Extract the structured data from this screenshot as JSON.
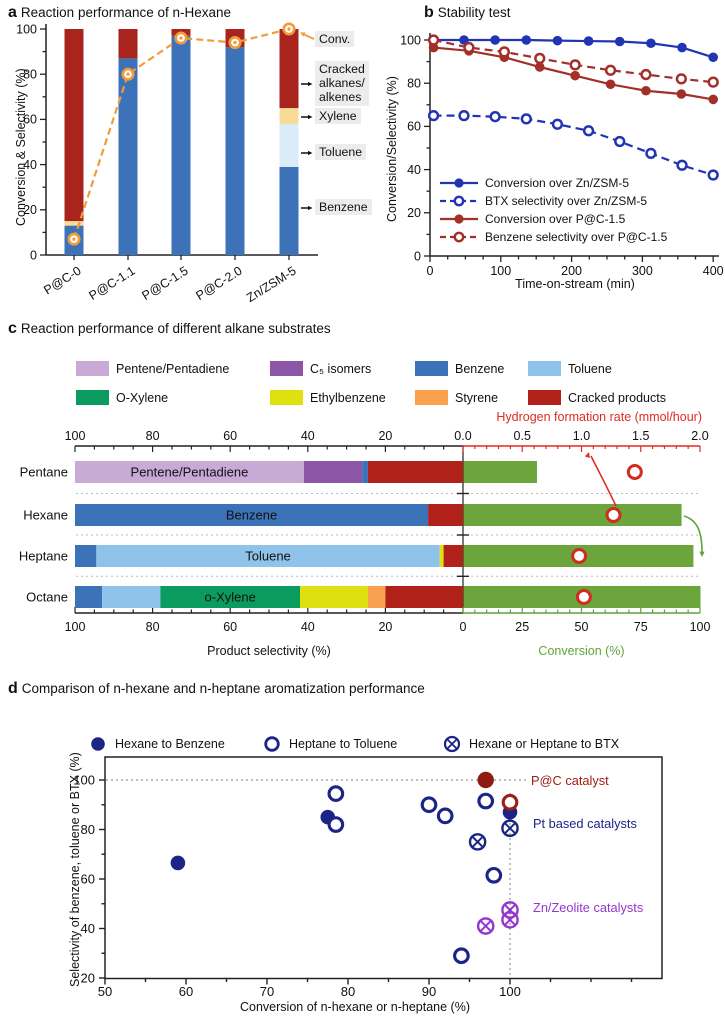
{
  "panels": {
    "a": {
      "tag": "a",
      "title": "Reaction performance of n-Hexane"
    },
    "b": {
      "tag": "b",
      "title": "Stability test"
    },
    "c": {
      "tag": "c",
      "title": "Reaction performance of different alkane substrates"
    },
    "d": {
      "tag": "d",
      "title": "Comparison of n-hexane and n-heptane aromatization performance"
    }
  },
  "chart_data": {
    "a": {
      "type": "bar+line",
      "ylabel": "Conversion & Selectivity (%)",
      "ylim": [
        0,
        100
      ],
      "yticks": [
        0,
        20,
        40,
        60,
        80,
        100
      ],
      "categories": [
        "P@C-0",
        "P@C-1.1",
        "P@C-1.5",
        "P@C-2.0",
        "Zn/ZSM-5"
      ],
      "stack_series": [
        {
          "name": "Benzene",
          "color": "#3C72B8",
          "values": [
            13,
            87,
            97,
            92,
            39
          ]
        },
        {
          "name": "Toluene",
          "color": "#D9ECF8",
          "values": [
            0,
            0,
            0,
            0,
            19
          ]
        },
        {
          "name": "Xylene",
          "color": "#F7DB97",
          "values": [
            2,
            0,
            0,
            0,
            7
          ]
        },
        {
          "name": "Cracked alkanes/alkenes",
          "color": "#A8241C",
          "values": [
            85,
            13,
            3,
            8,
            35
          ]
        }
      ],
      "conversion_line": {
        "name": "Conv.",
        "color": "#F29B3B",
        "values": [
          7,
          80,
          96,
          94,
          100
        ]
      },
      "annotations": [
        {
          "label": "Conv."
        },
        {
          "label": "Cracked\nalkanes/\nalkenes"
        },
        {
          "label": "Xylene"
        },
        {
          "label": "Toluene"
        },
        {
          "label": "Benzene"
        }
      ]
    },
    "b": {
      "type": "line",
      "xlabel": "Time-on-stream (min)",
      "ylabel": "Conversion/Selectivity (%)",
      "xlim": [
        0,
        410
      ],
      "ylim": [
        0,
        103
      ],
      "xticks": [
        0,
        100,
        200,
        300,
        400
      ],
      "yticks": [
        0,
        20,
        40,
        60,
        80,
        100
      ],
      "series": [
        {
          "name": "Conversion over Zn/ZSM-5",
          "color": "#2134B2",
          "line": "solid",
          "marker": "filled",
          "x": [
            5,
            48,
            92,
            136,
            180,
            224,
            268,
            312,
            356,
            400
          ],
          "y": [
            100,
            100,
            100,
            100,
            99.7,
            99.5,
            99.3,
            98.5,
            96.5,
            92
          ]
        },
        {
          "name": "BTX selectivity over Zn/ZSM-5",
          "color": "#2134B2",
          "line": "dashed",
          "marker": "open",
          "x": [
            5,
            48,
            92,
            136,
            180,
            224,
            268,
            312,
            356,
            400
          ],
          "y": [
            65,
            65,
            64.5,
            63.5,
            61,
            58,
            53,
            47.5,
            42,
            37.5
          ]
        },
        {
          "name": "Conversion over P@C-1.5",
          "color": "#A33028",
          "line": "solid",
          "marker": "filled",
          "x": [
            5,
            55,
            105,
            155,
            205,
            255,
            305,
            355,
            400
          ],
          "y": [
            96.5,
            95,
            92,
            87.5,
            83.5,
            79.5,
            76.5,
            75,
            72.5
          ]
        },
        {
          "name": "Benzene selectivity over P@C-1.5",
          "color": "#A33028",
          "line": "dashed",
          "marker": "open",
          "x": [
            5,
            55,
            105,
            155,
            205,
            255,
            305,
            355,
            400
          ],
          "y": [
            100,
            96.5,
            94.5,
            91.5,
            88.5,
            86,
            84,
            82,
            80.5
          ]
        }
      ]
    },
    "c": {
      "type": "stacked-barh+barh+scatter",
      "rows": [
        "Pentane",
        "Hexane",
        "Heptane",
        "Octane"
      ],
      "legend": [
        {
          "label": "Pentene/Pentadiene",
          "color": "#C9A9D6"
        },
        {
          "label": "C₅ isomers",
          "color": "#8C55A5"
        },
        {
          "label": "Benzene",
          "color": "#3C72B8"
        },
        {
          "label": "Toluene",
          "color": "#8FC3EA"
        },
        {
          "label": "O-Xylene",
          "color": "#0C9B5F"
        },
        {
          "label": "Ethylbenzene",
          "color": "#DEE00F"
        },
        {
          "label": "Styrene",
          "color": "#F9A14F"
        },
        {
          "label": "Cracked products",
          "color": "#B02219"
        }
      ],
      "selectivity": {
        "axis_label": "Product selectivity (%)",
        "ticks": [
          100,
          80,
          60,
          40,
          20
        ],
        "zero_label": "0",
        "bars": [
          [
            {
              "name": "Pentene/Pentadiene",
              "value": 59,
              "show_label": "Pentene/Pentadiene",
              "text_color": "#111111"
            },
            {
              "name": "C₅ isomers",
              "value": 15
            },
            {
              "name": "Benzene",
              "value": 1.5
            },
            {
              "name": "Cracked products",
              "value": 24.5
            }
          ],
          [
            {
              "name": "Benzene",
              "value": 91,
              "show_label": "Benzene",
              "text_color": "#ffffff"
            },
            {
              "name": "Cracked products",
              "value": 9
            }
          ],
          [
            {
              "name": "Benzene",
              "value": 5.5
            },
            {
              "name": "Toluene",
              "value": 88.5,
              "show_label": "Toluene",
              "text_color": "#111111"
            },
            {
              "name": "Ethylbenzene",
              "value": 1
            },
            {
              "name": "Cracked products",
              "value": 5
            }
          ],
          [
            {
              "name": "Benzene",
              "value": 7
            },
            {
              "name": "Toluene",
              "value": 15
            },
            {
              "name": "O-Xylene",
              "value": 36,
              "show_label": "o-Xylene",
              "text_color": "#ffffff"
            },
            {
              "name": "Ethylbenzene",
              "value": 17.5
            },
            {
              "name": "Styrene",
              "value": 4.5
            },
            {
              "name": "Cracked products",
              "value": 20
            }
          ]
        ]
      },
      "conversion": {
        "axis_label": "Conversion (%)",
        "color": "#5FA339",
        "bar_color": "#6BA53C",
        "ticks": [
          0,
          25,
          50,
          75,
          100
        ],
        "values": [
          31,
          92,
          97,
          100
        ]
      },
      "hydrogen_rate": {
        "axis_label": "Hydrogen formation rate (mmol/hour)",
        "color": "#E02B20",
        "ticks": [
          "0.0",
          "0.5",
          "1.0",
          "1.5",
          "2.0"
        ],
        "values": [
          1.45,
          1.27,
          0.98,
          1.02
        ]
      }
    },
    "d": {
      "type": "scatter",
      "xlabel": "Conversion of n-hexane or n-heptane (%)",
      "ylabel": "Selectivity of benzene, toluene or BTX (%)",
      "xlim": [
        50,
        118.8
      ],
      "ylim": [
        20,
        109.3
      ],
      "xticks": [
        50,
        60,
        70,
        80,
        90,
        100
      ],
      "yticks": [
        20,
        40,
        60,
        80,
        100
      ],
      "legend": [
        {
          "label": "Hexane to Benzene",
          "marker": "filled"
        },
        {
          "label": "Heptane to Toluene",
          "marker": "open"
        },
        {
          "label": "Hexane or Heptane to BTX",
          "marker": "crossed"
        }
      ],
      "legend_color": "#1C2486",
      "series": [
        {
          "name": "Hexane to Benzene",
          "marker": "filled",
          "color": "#1C2486",
          "points": [
            [
              59,
              66.5
            ],
            [
              77.5,
              85
            ],
            [
              100,
              87
            ]
          ]
        },
        {
          "name": "Heptane to Toluene",
          "marker": "open",
          "color": "#1C2486",
          "points": [
            [
              78.5,
              94.5
            ],
            [
              78.5,
              82
            ],
            [
              90,
              90
            ],
            [
              92,
              85.5
            ],
            [
              97,
              91.5
            ],
            [
              98,
              61.5
            ],
            [
              94,
              29
            ]
          ]
        },
        {
          "name": "Hexane or Heptane to BTX",
          "marker": "crossed",
          "color": "#1C2486",
          "points": [
            [
              96,
              75
            ],
            [
              100,
              80.5
            ]
          ]
        },
        {
          "name": "P@C catalyst",
          "marker": "filled",
          "color": "#8E1C12",
          "points": [
            [
              97,
              100
            ]
          ]
        },
        {
          "name": "P@C catalyst",
          "marker": "open",
          "color": "#9E1F12",
          "points": [
            [
              100,
              91
            ]
          ]
        },
        {
          "name": "Zn/Zeolite catalysts",
          "marker": "crossed",
          "color": "#9437CE",
          "points": [
            [
              97,
              41
            ],
            [
              100,
              43.5
            ],
            [
              100,
              47.5
            ]
          ]
        }
      ],
      "annotations": [
        {
          "text": "P@C catalyst",
          "color": "#9E1C10"
        },
        {
          "text": "Pt based catalysts",
          "color": "#1C2486"
        },
        {
          "text": "Zn/Zeolite catalysts",
          "color": "#9437CE"
        }
      ],
      "ref_lines": {
        "h_y": 100,
        "v_x": 100
      }
    }
  }
}
